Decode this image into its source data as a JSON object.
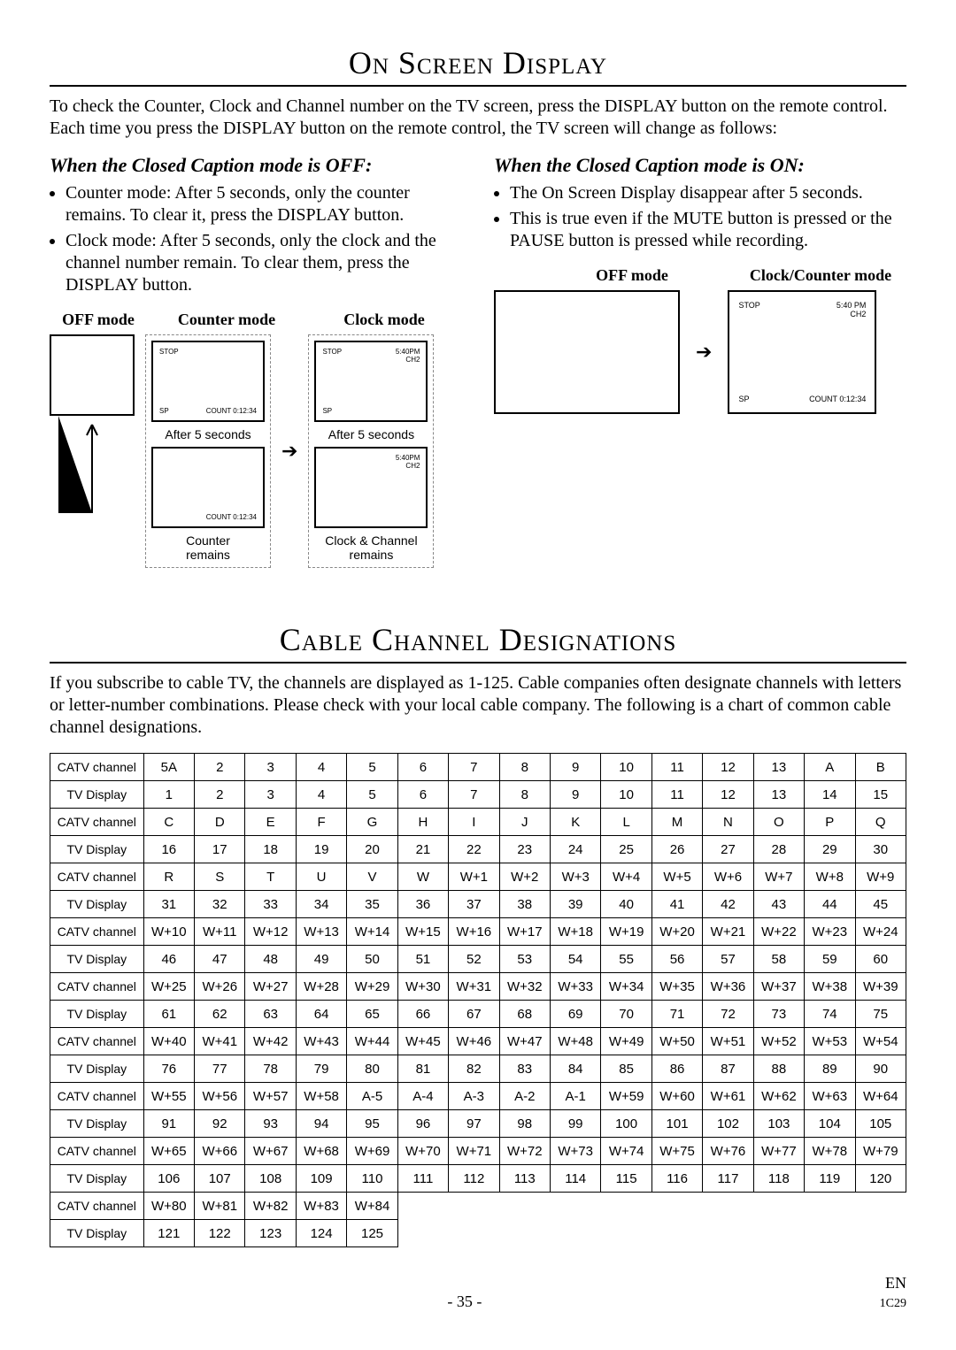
{
  "heading1": "On Screen Display",
  "intro": "To check the Counter, Clock and Channel number on the TV screen, press the DISPLAY button on the remote control. Each time you press the DISPLAY button on the remote control, the TV screen will change as follows:",
  "off": {
    "title": "When the Closed Caption mode is OFF:",
    "bullets": [
      "Counter mode: After 5 seconds, only the counter remains. To clear it, press the DISPLAY button.",
      "Clock mode: After 5 seconds, only the clock and the channel number remain. To clear them, press the DISPLAY button."
    ],
    "labels": {
      "off": "OFF mode",
      "counter": "Counter mode",
      "clock": "Clock mode"
    },
    "after5": "After 5 seconds",
    "counterRemains": "Counter\nremains",
    "clockRemains": "Clock & Channel\nremains",
    "scrn": {
      "stop": "STOP",
      "time": "5:40PM",
      "ch": "CH2",
      "sp": "SP",
      "count": "COUNT 0:12:34"
    }
  },
  "on": {
    "title": "When the Closed Caption mode is ON:",
    "bullets": [
      "The On Screen Display disappear after 5 seconds.",
      "This is true even if the MUTE button is pressed or the PAUSE button is pressed while recording."
    ],
    "labels": {
      "off": "OFF mode",
      "cc": "Clock/Counter mode"
    },
    "scrn": {
      "stop": "STOP",
      "time": "5:40 PM",
      "ch": "CH2",
      "sp": "SP",
      "count": "COUNT 0:12:34"
    }
  },
  "heading2": "Cable Channel Designations",
  "intro2": "If you subscribe to cable TV, the channels are displayed as 1-125. Cable companies often designate channels with letters or letter-number combinations. Please check with your local cable company. The following is a chart of common cable channel designations.",
  "tbl": {
    "rowlab": [
      "CATV channel",
      "TV Display"
    ],
    "pairs": [
      [
        [
          "5A",
          "2",
          "3",
          "4",
          "5",
          "6",
          "7",
          "8",
          "9",
          "10",
          "11",
          "12",
          "13",
          "A",
          "B"
        ],
        [
          "1",
          "2",
          "3",
          "4",
          "5",
          "6",
          "7",
          "8",
          "9",
          "10",
          "11",
          "12",
          "13",
          "14",
          "15"
        ]
      ],
      [
        [
          "C",
          "D",
          "E",
          "F",
          "G",
          "H",
          "I",
          "J",
          "K",
          "L",
          "M",
          "N",
          "O",
          "P",
          "Q"
        ],
        [
          "16",
          "17",
          "18",
          "19",
          "20",
          "21",
          "22",
          "23",
          "24",
          "25",
          "26",
          "27",
          "28",
          "29",
          "30"
        ]
      ],
      [
        [
          "R",
          "S",
          "T",
          "U",
          "V",
          "W",
          "W+1",
          "W+2",
          "W+3",
          "W+4",
          "W+5",
          "W+6",
          "W+7",
          "W+8",
          "W+9"
        ],
        [
          "31",
          "32",
          "33",
          "34",
          "35",
          "36",
          "37",
          "38",
          "39",
          "40",
          "41",
          "42",
          "43",
          "44",
          "45"
        ]
      ],
      [
        [
          "W+10",
          "W+11",
          "W+12",
          "W+13",
          "W+14",
          "W+15",
          "W+16",
          "W+17",
          "W+18",
          "W+19",
          "W+20",
          "W+21",
          "W+22",
          "W+23",
          "W+24"
        ],
        [
          "46",
          "47",
          "48",
          "49",
          "50",
          "51",
          "52",
          "53",
          "54",
          "55",
          "56",
          "57",
          "58",
          "59",
          "60"
        ]
      ],
      [
        [
          "W+25",
          "W+26",
          "W+27",
          "W+28",
          "W+29",
          "W+30",
          "W+31",
          "W+32",
          "W+33",
          "W+34",
          "W+35",
          "W+36",
          "W+37",
          "W+38",
          "W+39"
        ],
        [
          "61",
          "62",
          "63",
          "64",
          "65",
          "66",
          "67",
          "68",
          "69",
          "70",
          "71",
          "72",
          "73",
          "74",
          "75"
        ]
      ],
      [
        [
          "W+40",
          "W+41",
          "W+42",
          "W+43",
          "W+44",
          "W+45",
          "W+46",
          "W+47",
          "W+48",
          "W+49",
          "W+50",
          "W+51",
          "W+52",
          "W+53",
          "W+54"
        ],
        [
          "76",
          "77",
          "78",
          "79",
          "80",
          "81",
          "82",
          "83",
          "84",
          "85",
          "86",
          "87",
          "88",
          "89",
          "90"
        ]
      ],
      [
        [
          "W+55",
          "W+56",
          "W+57",
          "W+58",
          "A-5",
          "A-4",
          "A-3",
          "A-2",
          "A-1",
          "W+59",
          "W+60",
          "W+61",
          "W+62",
          "W+63",
          "W+64"
        ],
        [
          "91",
          "92",
          "93",
          "94",
          "95",
          "96",
          "97",
          "98",
          "99",
          "100",
          "101",
          "102",
          "103",
          "104",
          "105"
        ]
      ],
      [
        [
          "W+65",
          "W+66",
          "W+67",
          "W+68",
          "W+69",
          "W+70",
          "W+71",
          "W+72",
          "W+73",
          "W+74",
          "W+75",
          "W+76",
          "W+77",
          "W+78",
          "W+79"
        ],
        [
          "106",
          "107",
          "108",
          "109",
          "110",
          "111",
          "112",
          "113",
          "114",
          "115",
          "116",
          "117",
          "118",
          "119",
          "120"
        ]
      ],
      [
        [
          "W+80",
          "W+81",
          "W+82",
          "W+83",
          "W+84"
        ],
        [
          "121",
          "122",
          "123",
          "124",
          "125"
        ]
      ]
    ]
  },
  "footer": {
    "page": "- 35 -",
    "lang": "EN",
    "code": "1C29"
  }
}
